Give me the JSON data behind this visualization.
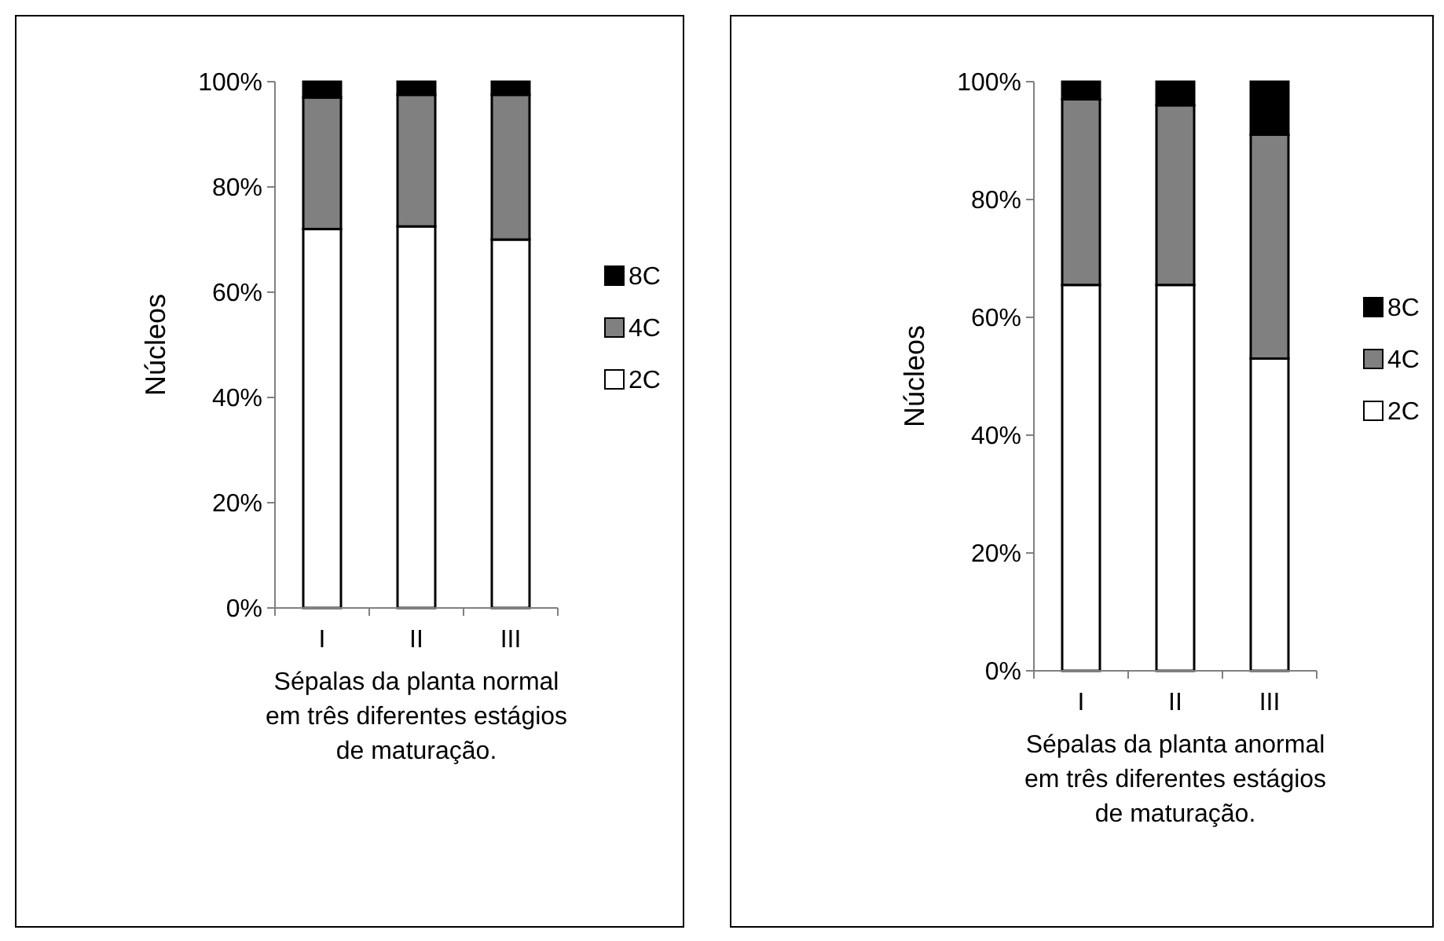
{
  "chart_data": [
    {
      "type": "bar",
      "stacked": true,
      "ylabel": "Núcleos",
      "xlabel": "Sépalas da planta normal\nem três diferentes estágios\nde maturação.",
      "categories": [
        "I",
        "II",
        "III"
      ],
      "ylim": [
        0,
        100
      ],
      "yticks": [
        {
          "value": 0,
          "label": "0%"
        },
        {
          "value": 20,
          "label": "20%"
        },
        {
          "value": 40,
          "label": "40%"
        },
        {
          "value": 60,
          "label": "60%"
        },
        {
          "value": 80,
          "label": "80%"
        },
        {
          "value": 100,
          "label": "100%"
        }
      ],
      "legend": "right",
      "series": [
        {
          "name": "2C",
          "color": "#ffffff",
          "values": [
            72,
            72.5,
            70
          ]
        },
        {
          "name": "4C",
          "color": "#808080",
          "values": [
            25,
            25,
            27.5
          ]
        },
        {
          "name": "8C",
          "color": "#000000",
          "values": [
            3,
            2.5,
            2.5
          ]
        }
      ]
    },
    {
      "type": "bar",
      "stacked": true,
      "ylabel": "Núcleos",
      "xlabel": "Sépalas da planta anormal\nem três diferentes estágios\nde maturação.",
      "categories": [
        "I",
        "II",
        "III"
      ],
      "ylim": [
        0,
        100
      ],
      "yticks": [
        {
          "value": 0,
          "label": "0%"
        },
        {
          "value": 20,
          "label": "20%"
        },
        {
          "value": 40,
          "label": "40%"
        },
        {
          "value": 60,
          "label": "60%"
        },
        {
          "value": 80,
          "label": "80%"
        },
        {
          "value": 100,
          "label": "100%"
        }
      ],
      "legend": "right",
      "series": [
        {
          "name": "2C",
          "color": "#ffffff",
          "values": [
            65.5,
            65.5,
            53
          ]
        },
        {
          "name": "4C",
          "color": "#808080",
          "values": [
            31.5,
            30.5,
            38
          ]
        },
        {
          "name": "8C",
          "color": "#000000",
          "values": [
            3,
            4,
            9
          ]
        }
      ]
    }
  ]
}
